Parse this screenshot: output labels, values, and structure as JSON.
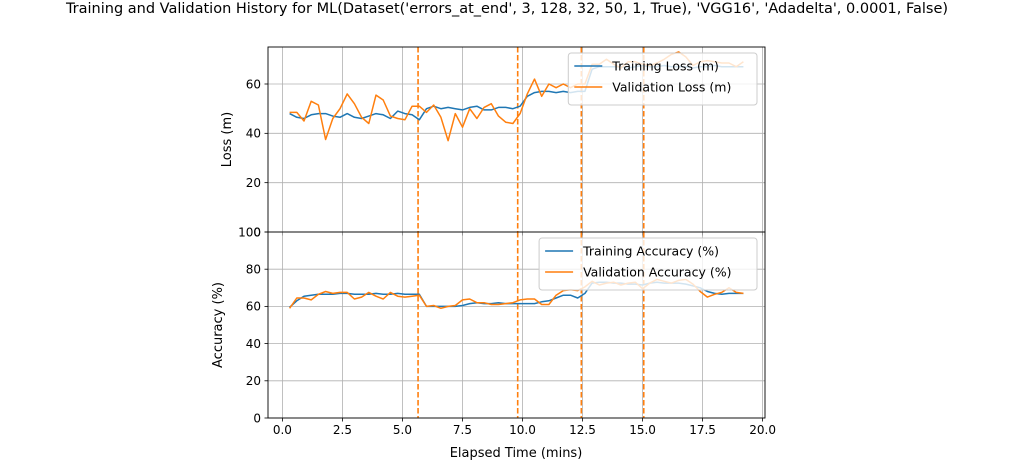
{
  "chart_data": {
    "type": "line",
    "title": "Training and Validation History for ML(Dataset('errors_at_end', 3, 128, 32, 50, 1, True), 'VGG16', 'Adadelta', 0.0001, False)",
    "xlabel": "Elapsed Time (mins)",
    "xlim": [
      -0.6,
      20.1
    ],
    "x_ticks": [
      "0.0",
      "2.5",
      "5.0",
      "7.5",
      "10.0",
      "12.5",
      "15.0",
      "17.5",
      "20.0"
    ],
    "grid": true,
    "vlines": {
      "color": "#ff7f0e",
      "style": "dashed",
      "x": [
        5.65,
        9.8,
        12.45,
        15.05
      ]
    },
    "colors": {
      "training": "#1f77b4",
      "validation": "#ff7f0e"
    },
    "panels": [
      {
        "id": "loss",
        "ylabel": "Loss (m)",
        "ylim": [
          0,
          75
        ],
        "y_ticks": [
          "0",
          "20",
          "40",
          "60"
        ],
        "legend_position": "upper right",
        "x": [
          0.3,
          0.6,
          0.9,
          1.2,
          1.5,
          1.8,
          2.1,
          2.4,
          2.7,
          3.0,
          3.3,
          3.6,
          3.9,
          4.2,
          4.5,
          4.8,
          5.1,
          5.4,
          5.7,
          6.0,
          6.3,
          6.6,
          6.9,
          7.2,
          7.5,
          7.8,
          8.1,
          8.4,
          8.7,
          9.0,
          9.3,
          9.6,
          9.9,
          10.2,
          10.5,
          10.8,
          11.1,
          11.4,
          11.7,
          12.0,
          12.3,
          12.6,
          12.9,
          13.2,
          13.5,
          13.8,
          14.1,
          14.4,
          14.7,
          15.0,
          15.3,
          15.6,
          15.9,
          16.2,
          16.5,
          16.8,
          17.1,
          17.4,
          17.7,
          18.0,
          18.3,
          18.6,
          18.9,
          19.2
        ],
        "series": [
          {
            "name": "Training Loss (m)",
            "color": "#1f77b4",
            "values": [
              48,
              46.5,
              46,
              47.5,
              48,
              48,
              47,
              46.5,
              48,
              46.5,
              46,
              47,
              48,
              47.5,
              46,
              49,
              48,
              47.5,
              45.5,
              50,
              51,
              50,
              50.5,
              50,
              49.5,
              50.5,
              51,
              49.5,
              49.5,
              50.5,
              50.5,
              50,
              51,
              55,
              56.5,
              57,
              57,
              56.5,
              57,
              56.5,
              57,
              57,
              66,
              67,
              67,
              67,
              67,
              66.5,
              67,
              67.5,
              67,
              67,
              67.5,
              67,
              67,
              67,
              66.5,
              67,
              67,
              67.5,
              67,
              67,
              67,
              67
            ]
          },
          {
            "name": "Validation Loss (m)",
            "color": "#ff7f0e",
            "values": [
              48.5,
              48.5,
              45,
              53,
              51.5,
              37.5,
              46,
              50,
              56,
              52,
              46.5,
              44,
              55.5,
              53.5,
              47,
              46,
              45.5,
              51,
              51,
              48.5,
              51.5,
              46.5,
              37,
              48,
              42.5,
              50,
              46,
              50.5,
              52,
              47,
              44.5,
              44,
              48,
              56,
              62,
              55,
              60,
              58.5,
              60,
              58.5,
              60,
              60,
              68,
              68,
              70,
              68,
              66.5,
              69,
              69,
              68,
              67.5,
              68.5,
              70,
              72,
              73,
              71,
              67.5,
              69,
              69.5,
              69,
              68.5,
              68.5,
              67,
              69
            ]
          }
        ]
      },
      {
        "id": "accuracy",
        "ylabel": "Accuracy (%)",
        "ylim": [
          0,
          100
        ],
        "y_ticks": [
          "0",
          "20",
          "40",
          "60",
          "80",
          "100"
        ],
        "legend_position": "upper right",
        "x": [
          0.3,
          0.6,
          0.9,
          1.2,
          1.5,
          1.8,
          2.1,
          2.4,
          2.7,
          3.0,
          3.3,
          3.6,
          3.9,
          4.2,
          4.5,
          4.8,
          5.1,
          5.4,
          5.7,
          6.0,
          6.3,
          6.6,
          6.9,
          7.2,
          7.5,
          7.8,
          8.1,
          8.4,
          8.7,
          9.0,
          9.3,
          9.6,
          9.9,
          10.2,
          10.5,
          10.8,
          11.1,
          11.4,
          11.7,
          12.0,
          12.3,
          12.6,
          12.9,
          13.2,
          13.5,
          13.8,
          14.1,
          14.4,
          14.7,
          15.0,
          15.3,
          15.6,
          15.9,
          16.2,
          16.5,
          16.8,
          17.1,
          17.4,
          17.7,
          18.0,
          18.3,
          18.6,
          18.9,
          19.2
        ],
        "series": [
          {
            "name": "Training Accuracy (%)",
            "color": "#1f77b4",
            "values": [
              59.5,
              63,
              65.5,
              66,
              66.5,
              66.5,
              66.5,
              67,
              67,
              66.5,
              66.5,
              66.5,
              67,
              66.5,
              66.5,
              67,
              66.5,
              66.5,
              66.5,
              60,
              60,
              60,
              60,
              60,
              60.5,
              61.5,
              62,
              61.5,
              61.5,
              62,
              61.5,
              61.5,
              61.5,
              61.5,
              61.5,
              62.5,
              63,
              64.5,
              66,
              66,
              64.5,
              67,
              72.5,
              73,
              73,
              72.5,
              72.5,
              72,
              72,
              71.5,
              72.5,
              73,
              72.5,
              72.5,
              72.5,
              72,
              71,
              70,
              68,
              67,
              66.5,
              67,
              67,
              67
            ]
          },
          {
            "name": "Validation Accuracy (%)",
            "color": "#ff7f0e",
            "values": [
              59,
              64.5,
              64.5,
              63.5,
              66.5,
              68,
              67,
              67.5,
              67.5,
              64,
              65,
              67.5,
              65.5,
              64,
              67.5,
              65.5,
              65,
              65.5,
              66,
              60,
              60.5,
              59,
              60,
              60.5,
              63.5,
              64,
              62,
              62,
              61,
              61,
              61.5,
              62,
              63.5,
              64,
              64,
              61,
              61,
              66,
              68.5,
              69,
              68.5,
              70.5,
              73.5,
              71.5,
              72.5,
              73,
              71.5,
              72.5,
              73,
              69.5,
              72.5,
              74.5,
              73.5,
              72.5,
              74,
              74.5,
              72,
              68,
              65,
              66.5,
              67.5,
              70,
              67.5,
              67
            ]
          }
        ]
      }
    ]
  }
}
